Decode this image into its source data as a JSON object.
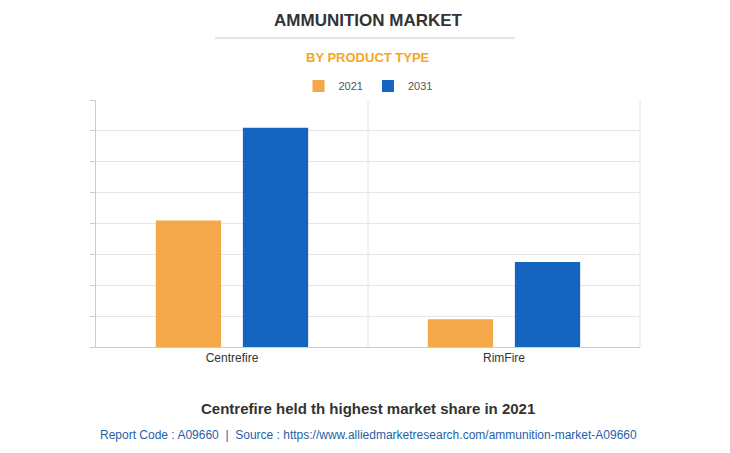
{
  "chart_data": {
    "type": "bar",
    "title": "AMMUNITION MARKET",
    "subtitle": "BY PRODUCT TYPE",
    "categories": [
      "Centrefire",
      "RimFire"
    ],
    "series": [
      {
        "name": "2021",
        "color": "#f4a84a",
        "values": [
          4.1,
          0.9
        ]
      },
      {
        "name": "2031",
        "color": "#1565c0",
        "values": [
          7.1,
          2.75
        ]
      }
    ],
    "ylim": [
      0,
      8
    ],
    "yticks": [
      0,
      1,
      2,
      3,
      4,
      5,
      6,
      7,
      8
    ],
    "grid": true,
    "legend": "top",
    "tick_labels": "x",
    "annotations": [
      "Centrefire held th highest market share in 2021",
      "Report Code : A09660  |  Source : https://www.alliedmarketresearch.com/ammunition-market-A09660"
    ]
  }
}
